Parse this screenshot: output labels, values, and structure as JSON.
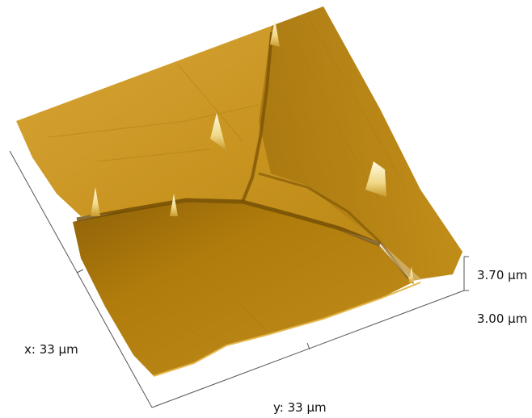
{
  "labels": {
    "x_axis": "x: 33 µm",
    "y_axis": "y: 33 µm",
    "z_max": "3.70 µm",
    "z_min": "3.00 µm"
  },
  "colors": {
    "surface_light": "#d9a52a",
    "surface_mid": "#b8860b",
    "surface_dark": "#8a5e05",
    "peak": "#fff6c8",
    "axis": "#555555"
  }
}
